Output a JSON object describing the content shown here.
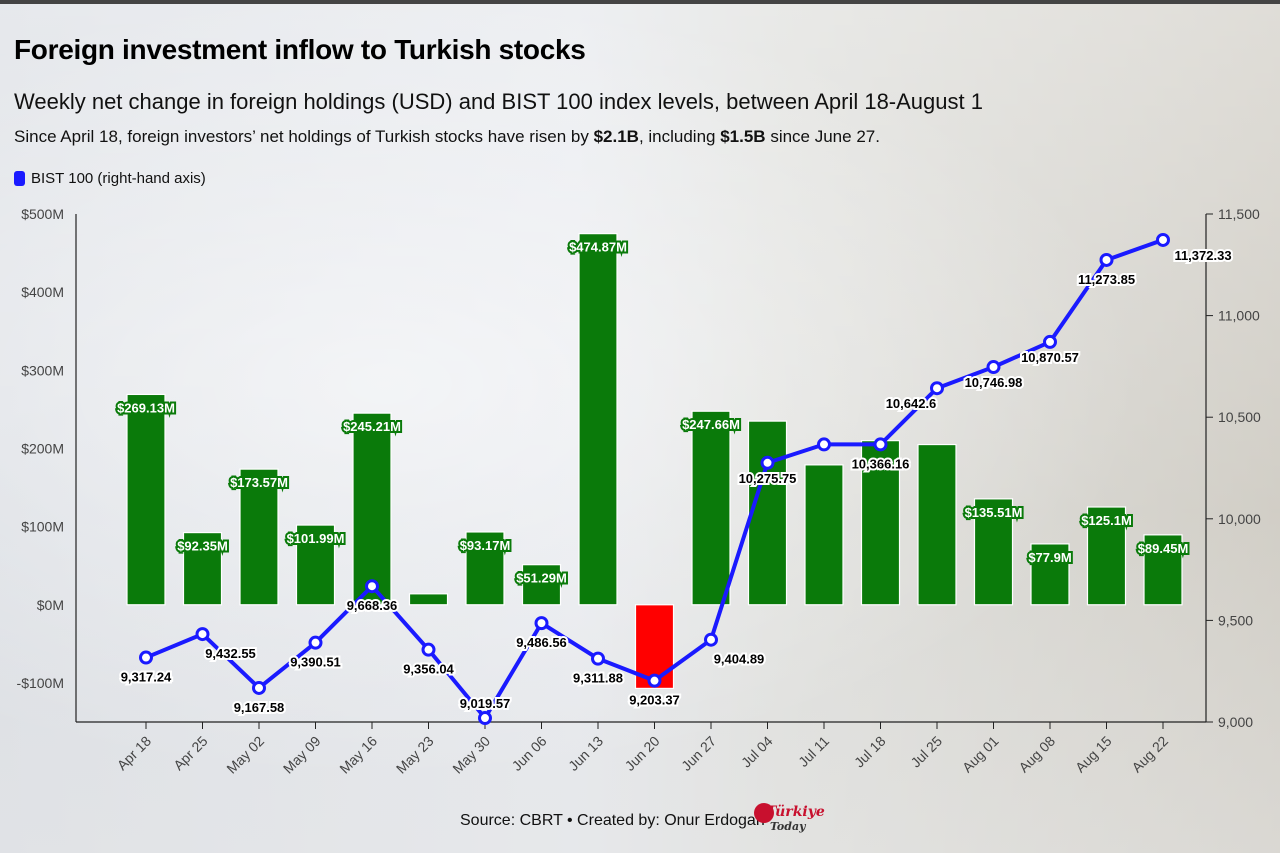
{
  "title": "Foreign investment inflow to Turkish stocks",
  "subtitle": "Weekly net change in foreign holdings (USD) and BIST 100 index levels, between April 18-August 1",
  "note": {
    "prefix": "Since April 18, foreign investors’ net holdings of Turkish stocks have risen by ",
    "total": "$2.1B",
    "middle": ", including ",
    "recent": "$1.5B",
    "suffix": " since June 27."
  },
  "legend_label": "BIST 100 (right-hand axis)",
  "source": "Source: CBRT • Created by: Onur Erdogan",
  "logo": {
    "top": "Türkiye",
    "bottom": "Today"
  },
  "colors": {
    "positive_bar": "#0a7a0a",
    "negative_bar": "#ff0000",
    "line": "#1a1aff"
  },
  "chart_data": {
    "type": "bar+line",
    "categories": [
      "Apr 18",
      "Apr 25",
      "May 02",
      "May 09",
      "May 16",
      "May 23",
      "May 30",
      "Jun 06",
      "Jun 13",
      "Jun 20",
      "Jun 27",
      "Jul 04",
      "Jul 11",
      "Jul 18",
      "Jul 25",
      "Aug 01",
      "Aug 08",
      "Aug 15",
      "Aug 22"
    ],
    "left_axis": {
      "min": -150,
      "max": 500,
      "ticks": [
        -100,
        0,
        100,
        200,
        300,
        400,
        500
      ],
      "tick_labels": [
        "-$100M",
        "$0M",
        "$100M",
        "$200M",
        "$300M",
        "$400M",
        "$500M"
      ]
    },
    "right_axis": {
      "min": 9000,
      "max": 11500,
      "ticks": [
        9000,
        9500,
        10000,
        10500,
        11000,
        11500
      ],
      "tick_labels": [
        "9,000",
        "9,500",
        "10,000",
        "10,500",
        "11,000",
        "11,500"
      ]
    },
    "series": [
      {
        "type": "bar",
        "axis": "left",
        "values": [
          269.13,
          92.35,
          173.57,
          101.99,
          245.21,
          14,
          93.17,
          51.29,
          474.87,
          -107,
          247.66,
          235,
          179,
          210,
          205,
          135.51,
          77.9,
          125.1,
          89.45
        ],
        "labels": [
          "$269.13M",
          "$92.35M",
          "$173.57M",
          "$101.99M",
          "$245.21M",
          "",
          "$93.17M",
          "$51.29M",
          "$474.87M",
          "",
          "$247.66M",
          "",
          "",
          "",
          "",
          "$135.51M",
          "$77.9M",
          "$125.1M",
          "$89.45M"
        ]
      },
      {
        "name": "BIST 100 (right-hand axis)",
        "type": "line",
        "axis": "right",
        "values": [
          9317.24,
          9432.55,
          9167.58,
          9390.51,
          9668.36,
          9356.04,
          9019.57,
          9486.56,
          9311.88,
          9203.37,
          9404.89,
          10275.75,
          10366.16,
          10366.16,
          10642.6,
          10746.98,
          10870.57,
          11273.85,
          11372.33
        ],
        "labels": [
          "9,317.24",
          "9,432.55",
          "9,167.58",
          "9,390.51",
          "9,668.36",
          "9,356.04",
          "9,019.57",
          "9,486.56",
          "9,311.88",
          "9,203.37",
          "9,404.89",
          "10,275.75",
          "",
          "10,366.16",
          "10,642.6",
          "10,746.98",
          "10,870.57",
          "11,273.85",
          "11,372.33"
        ]
      }
    ],
    "grid": false,
    "legend_position": "top-left"
  }
}
